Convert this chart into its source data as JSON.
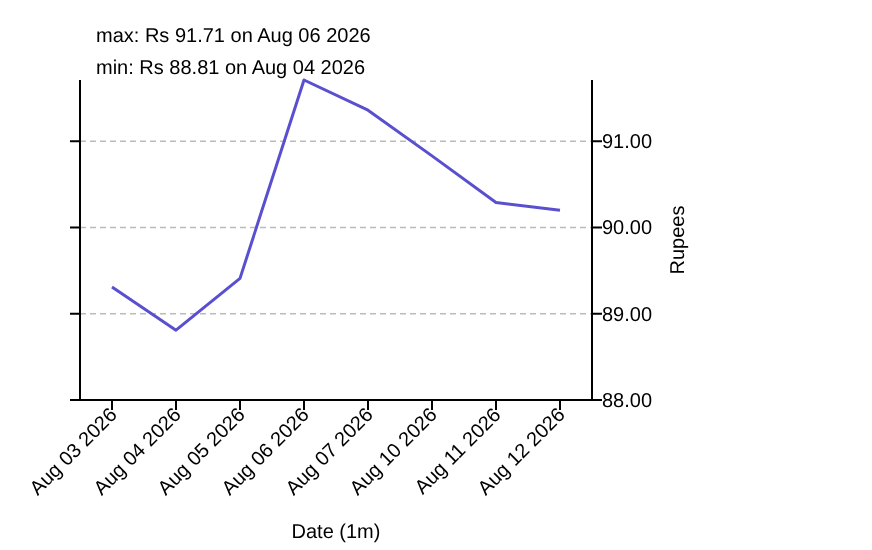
{
  "chart_data": {
    "type": "line",
    "xlabel": "Date (1m)",
    "ylabel": "Rupees",
    "annotations": [
      "max: Rs 91.71 on Aug 06 2026",
      "min: Rs 88.81 on Aug 04 2026"
    ],
    "categories": [
      "Aug 03 2026",
      "Aug 04 2026",
      "Aug 05 2026",
      "Aug 06 2026",
      "Aug 07 2026",
      "Aug 10 2026",
      "Aug 11 2026",
      "Aug 12 2026"
    ],
    "series": [
      {
        "color": "#5a4fcf",
        "values": [
          89.31,
          88.81,
          89.41,
          91.71,
          91.36,
          90.83,
          90.29,
          90.2
        ]
      }
    ],
    "ylim": [
      88,
      91.71
    ],
    "yticks": [
      {
        "value": 88,
        "label": "88.00"
      },
      {
        "value": 89,
        "label": "89.00"
      },
      {
        "value": 90,
        "label": "90.00"
      },
      {
        "value": 91,
        "label": "91.00"
      }
    ],
    "grid": "y",
    "marker": "none",
    "line_style": "solid"
  }
}
